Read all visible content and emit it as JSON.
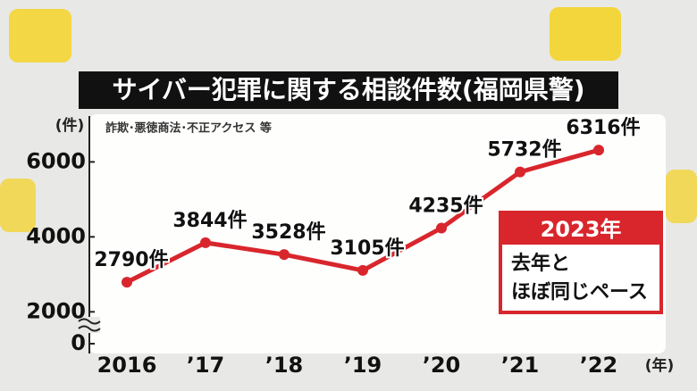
{
  "chart_data": {
    "type": "line",
    "title": "サイバー犯罪に関する相談件数(福岡県警)",
    "subtitle": "詐欺･悪徳商法･不正アクセス 等",
    "y_label": "(件)",
    "x_label": "(年)",
    "categories": [
      "2016",
      "’17",
      "’18",
      "’19",
      "’20",
      "’21",
      "’22"
    ],
    "series": [
      {
        "name": "相談件数",
        "color": "#d8262c",
        "values": [
          2790,
          3844,
          3528,
          3105,
          4235,
          5732,
          6316
        ],
        "value_labels": [
          "2790件",
          "3844件",
          "3528件",
          "3105件",
          "4235件",
          "5732件",
          "6316件"
        ]
      }
    ],
    "ylim": [
      1150,
      7200
    ],
    "yticks": [
      0,
      2000,
      4000,
      6000
    ],
    "callout": {
      "title": "2023年",
      "lines": [
        "去年と",
        "ほぼ同じペース"
      ]
    }
  }
}
